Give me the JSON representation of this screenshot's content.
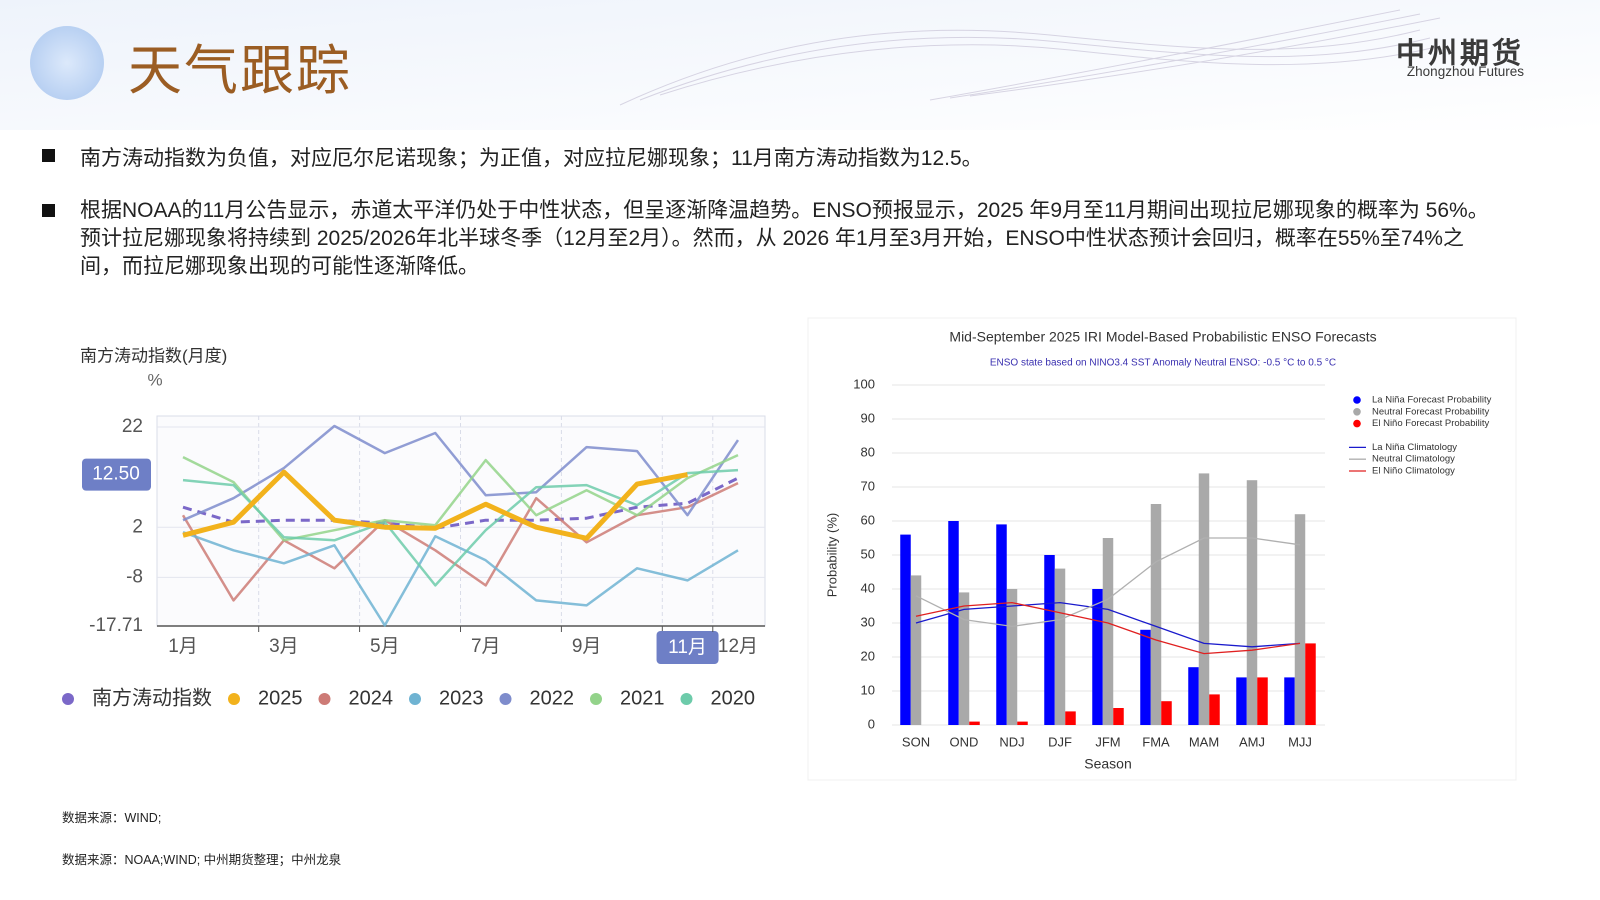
{
  "header": {
    "title": "天气跟踪",
    "logo": "中州期货",
    "logo_subtitle": "Zhongzhou Futures"
  },
  "bullets": [
    "南方涛动指数为负值，对应厄尔尼诺现象；为正值，对应拉尼娜现象；11月南方涛动指数为12.5。",
    "根据NOAA的11月公告显示，赤道太平洋仍处于中性状态，但呈逐渐降温趋势。ENSO预报显示，2025 年9月至11月期间出现拉尼娜现象的概率为 56%。预计拉尼娜现象将持续到 2025/2026年北半球冬季（12月至2月）。然而，从 2026 年1月至3月开始，ENSO中性状态预计会回归，概率在55%至74%之间，而拉尼娜现象出现的可能性逐渐降低。"
  ],
  "chart_data": [
    {
      "type": "line",
      "title": "南方涛动指数(月度)",
      "y_unit": "%",
      "categories": [
        "1月",
        null,
        "3月",
        null,
        "5月",
        null,
        "7月",
        null,
        "9月",
        null,
        "11月",
        "12月"
      ],
      "ylim": [
        -17.71,
        24.2
      ],
      "yticks": [
        22,
        2,
        -8,
        -17.71
      ],
      "grid": true,
      "crosshair": {
        "value": 12.5,
        "label": "12.50"
      },
      "series": [
        {
          "name": "南方涛动指数",
          "color": "#7b68c8",
          "dashed": true,
          "values": [
            6,
            3,
            3.4,
            3.4,
            2.8,
            1.8,
            3.4,
            3.4,
            3.8,
            6,
            6.8,
            11.8
          ]
        },
        {
          "name": "2025",
          "color": "#f2b21c",
          "highlight": true,
          "values": [
            0.4,
            3,
            13,
            3.4,
            2,
            1.8,
            6.6,
            2,
            -0.2,
            10.6,
            12.5,
            null
          ]
        },
        {
          "name": "2024",
          "color": "#cd7b76",
          "values": [
            4.4,
            -12.6,
            -0.6,
            -6.2,
            3.4,
            -2.6,
            -9.6,
            7.8,
            -1,
            4.4,
            6,
            10.8
          ]
        },
        {
          "name": "2023",
          "color": "#6fb3d2",
          "values": [
            1,
            -2.6,
            -5.2,
            -1.6,
            -17.6,
            0.2,
            -4.6,
            -12.6,
            -13.6,
            -6.2,
            -8.6,
            -2.6
          ]
        },
        {
          "name": "2022",
          "color": "#7e8ccc",
          "values": [
            3.4,
            7.8,
            13.8,
            22.2,
            16.8,
            20.8,
            8.4,
            9,
            18,
            17.2,
            4.4,
            19.4
          ]
        },
        {
          "name": "2021",
          "color": "#93d38a",
          "values": [
            16,
            11,
            -0.6,
            1.4,
            3.4,
            2.4,
            15.4,
            4.4,
            9.4,
            4.4,
            11.8,
            16.4
          ]
        },
        {
          "name": "2020",
          "color": "#6dcbaa",
          "values": [
            11.4,
            10.4,
            0,
            -0.6,
            3,
            -9.6,
            1.4,
            10,
            10.4,
            6.4,
            12.8,
            13.4
          ]
        }
      ]
    },
    {
      "type": "bar",
      "title": "Mid-September 2025 IRI Model-Based Probabilistic ENSO Forecasts",
      "subtitle": "ENSO state based on NINO3.4 SST Anomaly Neutral ENSO: -0.5 °C to 0.5 °C",
      "x_label": "Season",
      "y_label": "Probability (%)",
      "categories": [
        "SON",
        "OND",
        "NDJ",
        "DJF",
        "JFM",
        "FMA",
        "MAM",
        "AMJ",
        "MJJ"
      ],
      "ylim": [
        0,
        100
      ],
      "yticks": [
        0,
        10,
        20,
        30,
        40,
        50,
        60,
        70,
        80,
        90,
        100
      ],
      "grid": true,
      "series": [
        {
          "name": "La Niña Forecast Probability",
          "color": "#0000ff",
          "type": "bar",
          "values": [
            56,
            60,
            59,
            50,
            40,
            28,
            17,
            14,
            14
          ]
        },
        {
          "name": "Neutral Forecast Probability",
          "color": "#a9a9a9",
          "type": "bar",
          "values": [
            44,
            39,
            40,
            46,
            55,
            65,
            74,
            72,
            62
          ]
        },
        {
          "name": "El Niño Forecast Probability",
          "color": "#ff0000",
          "type": "bar",
          "values": [
            0,
            1,
            1,
            4,
            5,
            7,
            9,
            14,
            24
          ]
        },
        {
          "name": "La Niña Climatology",
          "color": "#1a1acc",
          "type": "line",
          "values": [
            30,
            34,
            35,
            36,
            34,
            29,
            24,
            23,
            24
          ]
        },
        {
          "name": "Neutral Climatology",
          "color": "#b0b0b0",
          "type": "line",
          "values": [
            38,
            31,
            29,
            31,
            37,
            48,
            55,
            55,
            53
          ]
        },
        {
          "name": "El Niño Climatology",
          "color": "#e02020",
          "type": "line",
          "values": [
            32,
            35,
            36,
            33,
            30,
            25,
            21,
            22,
            24
          ]
        }
      ]
    }
  ],
  "sources": [
    "数据来源：WIND;",
    "数据来源：NOAA;WIND; 中州期货整理；中州龙泉"
  ]
}
